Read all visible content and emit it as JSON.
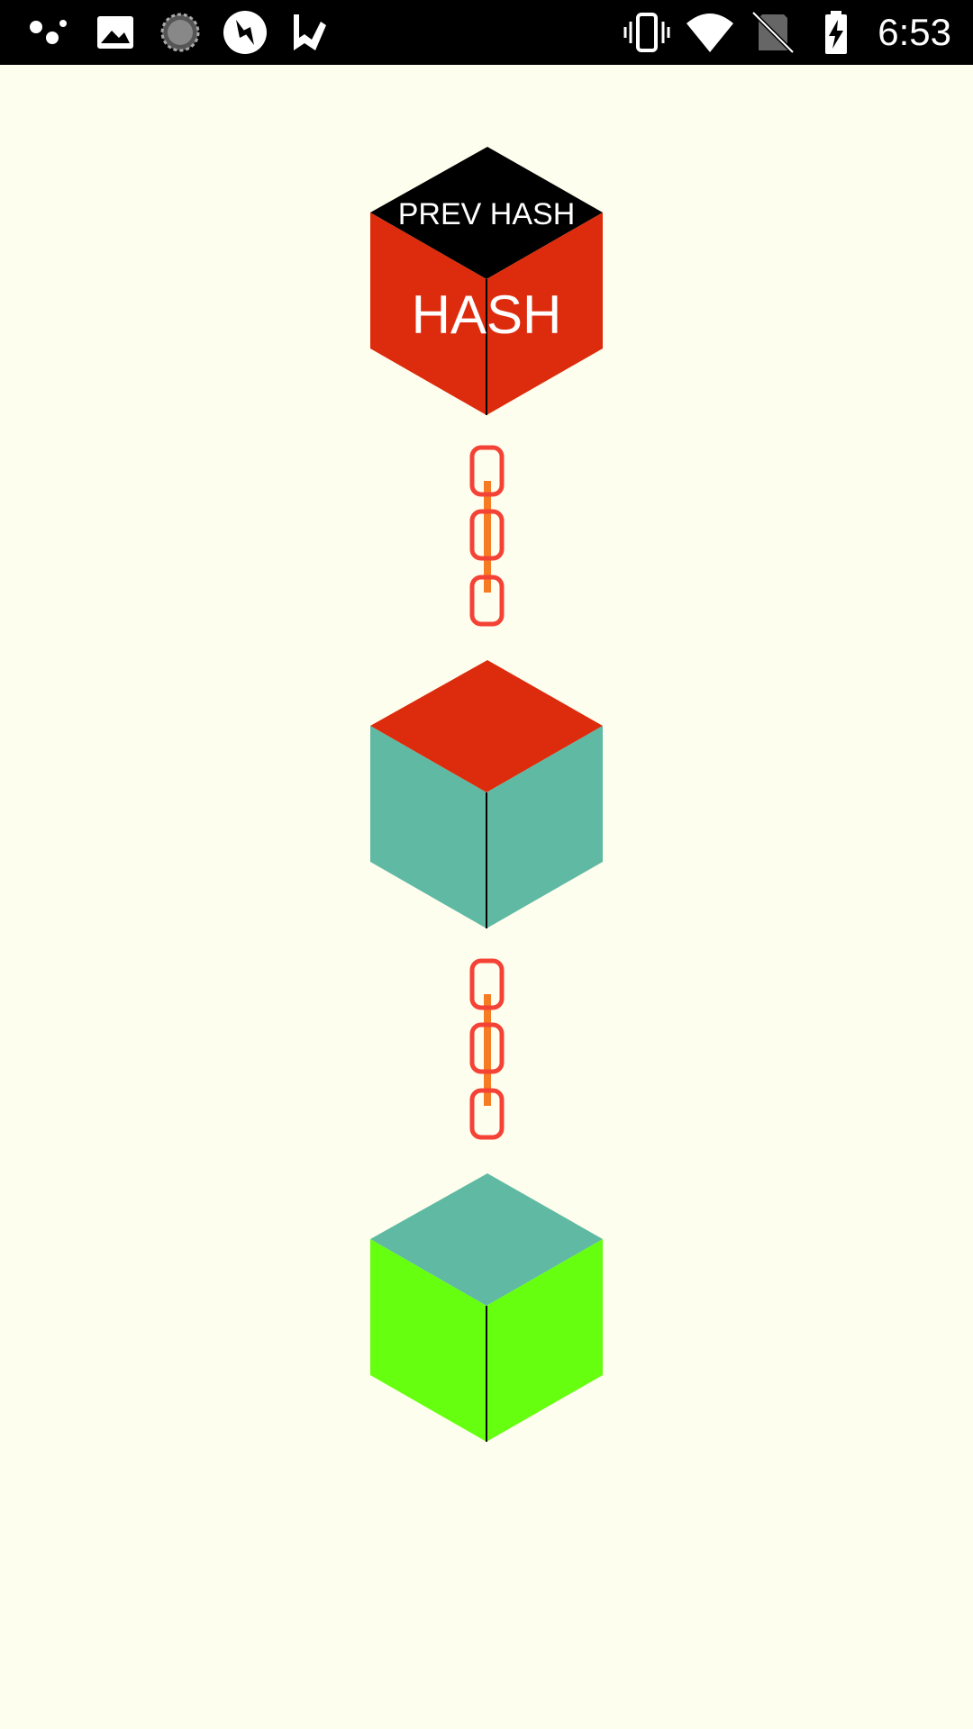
{
  "status_bar": {
    "time": "6:53",
    "left_icons": [
      "notification-dots-icon",
      "image-icon",
      "loading-spinner-icon",
      "sync-icon",
      "task-check-icon"
    ],
    "right_icons": [
      "vibrate-icon",
      "wifi-icon",
      "no-sim-icon",
      "battery-charging-icon"
    ]
  },
  "colors": {
    "background": "#fefeee",
    "red": "#dd2c0d",
    "teal": "#5fb9a3",
    "green": "#66ff0f",
    "black": "#000000",
    "chain_outline": "#f44336",
    "chain_connector": "#f57c23"
  },
  "blocks": [
    {
      "name": "block-1",
      "top_color": "#000000",
      "side_color": "#dd2c0d",
      "top_label": "PREV HASH",
      "side_label": "HASH"
    },
    {
      "name": "block-2",
      "top_color": "#dd2c0d",
      "side_color": "#5fb9a3",
      "top_label": "",
      "side_label": ""
    },
    {
      "name": "block-3",
      "top_color": "#5fb9a3",
      "side_color": "#66ff0f",
      "top_label": "",
      "side_label": ""
    }
  ]
}
